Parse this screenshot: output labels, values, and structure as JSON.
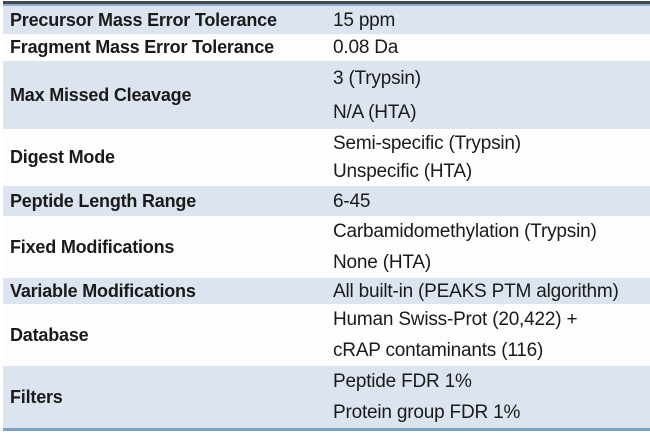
{
  "table": {
    "rows": [
      {
        "label": "Precursor Mass Error Tolerance",
        "values": [
          "15 ppm"
        ],
        "shade": "blue"
      },
      {
        "label": "Fragment Mass Error Tolerance",
        "values": [
          "0.08 Da"
        ],
        "shade": "white"
      },
      {
        "label": "Max Missed Cleavage",
        "values": [
          "3 (Trypsin)",
          "N/A (HTA)"
        ],
        "shade": "blue"
      },
      {
        "label": "Digest Mode",
        "values": [
          "Semi-specific (Trypsin)",
          "Unspecific (HTA)"
        ],
        "shade": "white"
      },
      {
        "label": "Peptide Length Range",
        "values": [
          "6-45"
        ],
        "shade": "blue"
      },
      {
        "label": "Fixed Modifications",
        "values": [
          "Carbamidomethylation (Trypsin)",
          "None (HTA)"
        ],
        "shade": "white"
      },
      {
        "label": "Variable Modifications",
        "values": [
          "All built-in (PEAKS PTM algorithm)"
        ],
        "shade": "blue"
      },
      {
        "label": "Database",
        "values": [
          "Human Swiss-Prot (20,422) +",
          "cRAP contaminants (116)"
        ],
        "shade": "white"
      },
      {
        "label": "Filters",
        "values": [
          "Peptide FDR 1%",
          "Protein group FDR 1%"
        ],
        "shade": "blue"
      }
    ],
    "colors": {
      "row_blue": "#dce4f0",
      "row_white": "#fdfdfd",
      "border_top_dark": "#43464c",
      "border_top_blue": "#92afd2",
      "border_bottom": "#7ca1c7",
      "text": "#1a1a1a"
    }
  }
}
